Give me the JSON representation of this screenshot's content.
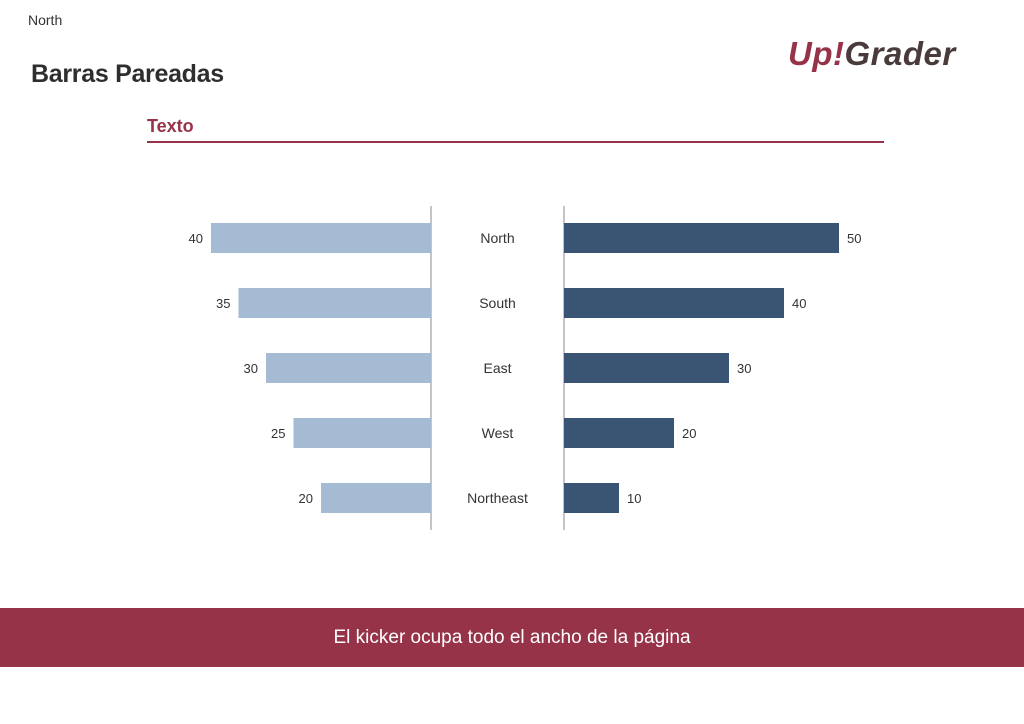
{
  "header": {
    "corner_label": "North",
    "title": "Barras Pareadas",
    "logo_part1": "Up!",
    "logo_part2": "Grader"
  },
  "section": {
    "title": "Texto"
  },
  "footer": {
    "kicker": "El kicker ocupa todo el ancho de la página"
  },
  "colors": {
    "accent": "#963348",
    "logo_dark": "#4a3b3b",
    "left_series": "#a4bbd3",
    "right_series": "#3a5573",
    "axis_line": "#8a8a8a",
    "label_text": "#333333"
  },
  "chart_data": {
    "type": "bar",
    "orientation": "horizontal-paired",
    "categories": [
      "North",
      "South",
      "East",
      "West",
      "Northeast"
    ],
    "series": [
      {
        "values": [
          40,
          35,
          30,
          25,
          20
        ]
      },
      {
        "values": [
          50,
          40,
          30,
          20,
          10
        ]
      }
    ],
    "xlim": [
      0,
      50
    ],
    "grid": false,
    "legend": "none",
    "data_labels": true
  }
}
